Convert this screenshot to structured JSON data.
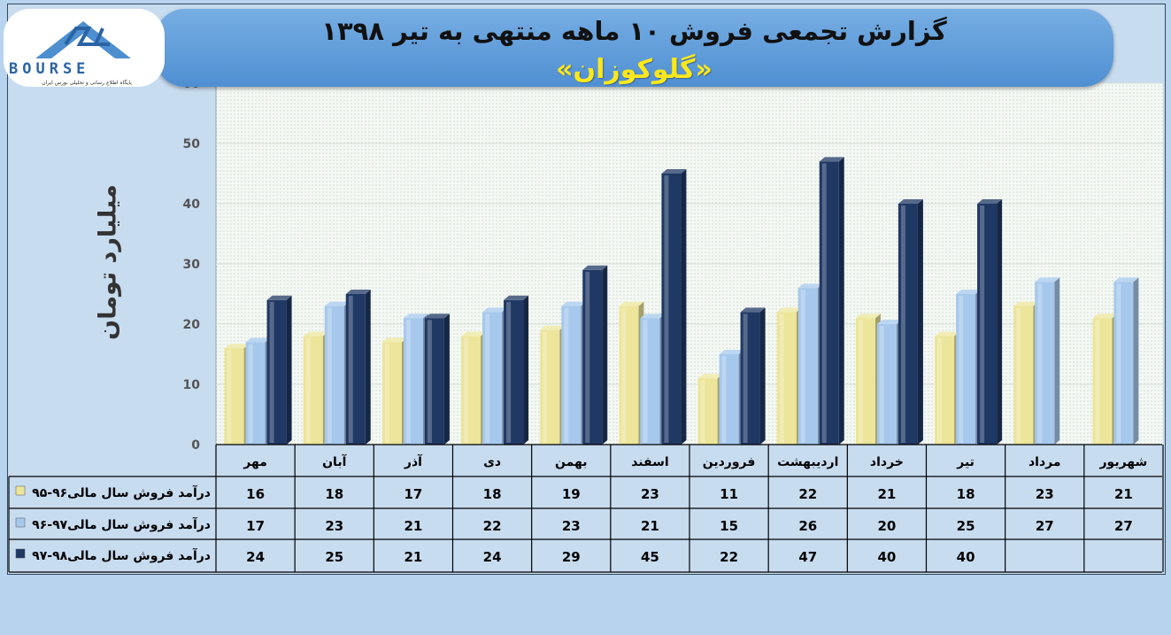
{
  "header": {
    "title": "گزارش تجمعی فروش ۱۰ ماهه منتهی به تیر ۱۳۹۸",
    "subtitle": "«گلوکوزان»"
  },
  "logo": {
    "icon": "bourse24-logo-icon",
    "word": "BOURSE",
    "tagline": "پایگاه اطلاع رسانی و تحلیلی بورس ایران"
  },
  "chart_data": {
    "type": "bar",
    "title": "گزارش تجمعی فروش ۱۰ ماهه منتهی به تیر ۱۳۹۸",
    "ylabel": "میلیارد تومان",
    "xlabel": "",
    "ylim": [
      0,
      60
    ],
    "yticks": [
      0,
      10,
      20,
      30,
      40,
      50,
      60
    ],
    "grid": true,
    "legend": "left-of-table",
    "categories": [
      "مهر",
      "آبان",
      "آذر",
      "دی",
      "بهمن",
      "اسفند",
      "فروردین",
      "اردیبهشت",
      "خرداد",
      "تیر",
      "مرداد",
      "شهریور"
    ],
    "series": [
      {
        "name": "درآمد فروش سال مالی۹۶-۹۵",
        "color": "#ece59a",
        "values": [
          16,
          18,
          17,
          18,
          19,
          23,
          11,
          22,
          21,
          18,
          23,
          21
        ]
      },
      {
        "name": "درآمد فروش سال مالی۹۷-۹۶",
        "color": "#a6c8ec",
        "values": [
          17,
          23,
          21,
          22,
          23,
          21,
          15,
          26,
          20,
          25,
          27,
          27
        ]
      },
      {
        "name": "درآمد فروش سال مالی۹۸-۹۷",
        "color": "#1f3864",
        "values": [
          24,
          25,
          21,
          24,
          29,
          45,
          22,
          47,
          40,
          40,
          null,
          null
        ]
      }
    ]
  }
}
